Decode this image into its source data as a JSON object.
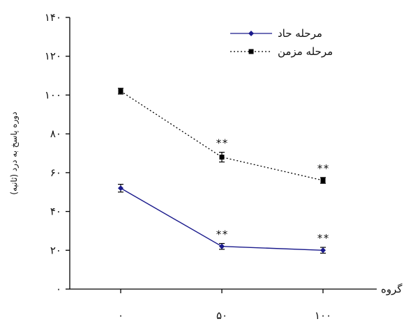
{
  "chart_data": {
    "type": "line",
    "xlabel": "گروه",
    "ylabel": "دوره پاسخ به درد (ثانیه)",
    "categories": [
      "۰",
      "۵۰",
      "۱۰۰"
    ],
    "ylim": [
      0,
      140
    ],
    "yticks": [
      "۰",
      "۲۰",
      "۴۰",
      "۶۰",
      "۸۰",
      "۱۰۰",
      "۱۲۰",
      "۱۴۰"
    ],
    "ytick_values": [
      0,
      20,
      40,
      60,
      80,
      100,
      120,
      140
    ],
    "grid": false,
    "legend_position": "top-right",
    "series": [
      {
        "name": "مرحله حاد",
        "values": [
          52,
          22,
          20
        ],
        "errors": [
          2,
          1.5,
          1.5
        ],
        "marker": "diamond",
        "line": "solid",
        "color": "#1a1a8c",
        "annotations": [
          "",
          "**",
          "**"
        ]
      },
      {
        "name": "مرحله مزمن",
        "values": [
          102,
          68,
          56
        ],
        "errors": [
          1.5,
          2.5,
          1.5
        ],
        "marker": "square",
        "line": "dotted",
        "color": "#000000",
        "annotations": [
          "",
          "**",
          "**"
        ]
      }
    ]
  }
}
